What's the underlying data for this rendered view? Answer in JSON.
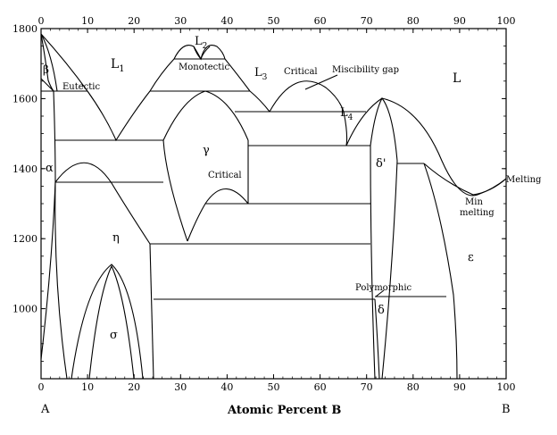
{
  "diagram": {
    "type": "binary-phase-diagram",
    "x_axis": {
      "title": "Atomic Percent B",
      "min": 0,
      "max": 100,
      "ticks": [
        0,
        10,
        20,
        30,
        40,
        50,
        60,
        70,
        80,
        90,
        100
      ],
      "end_labels": {
        "left": "A",
        "right": "B"
      }
    },
    "y_axis": {
      "min": 800,
      "max": 1800,
      "ticks": [
        1000,
        1200,
        1400,
        1600,
        1800
      ]
    },
    "labels": {
      "L1": "L",
      "L1_sub": "1",
      "L2": "L",
      "L2_sub": "2",
      "L3": "L",
      "L3_sub": "3",
      "L4": "L",
      "L4_sub": "4",
      "L": "L",
      "beta": "β",
      "alpha": "α",
      "gamma": "γ",
      "eta": "η",
      "sigma": "σ",
      "delta_prime": "δ'",
      "delta": "δ",
      "epsilon": "ε",
      "eutectic": "Eutectic",
      "monotectic": "Monotectic",
      "critical_top": "Critical",
      "miscibility_gap": "Miscibility gap",
      "critical_gamma": "Critical",
      "melting": "Melting",
      "min_melting_1": "Min",
      "min_melting_2": "melting",
      "polymorphic": "Polymorphic"
    }
  }
}
